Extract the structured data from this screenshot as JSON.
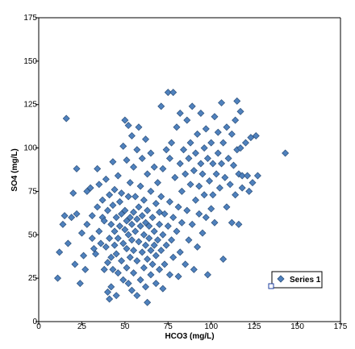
{
  "colors": {
    "marker_fill": "#4f81bd",
    "marker_stroke": "#2b4f7a",
    "axis": "#000000",
    "background": "#ffffff",
    "selection_handle": "#1f3f9f"
  },
  "chart_data": {
    "type": "scatter",
    "xlabel": "HCO3 (mg/L)",
    "ylabel": "SO4 (mg/L)",
    "xlim": [
      0,
      175
    ],
    "ylim": [
      0,
      175
    ],
    "x_ticks": [
      "0",
      "25",
      "50",
      "75",
      "100",
      "125",
      "150",
      "175"
    ],
    "y_ticks": [
      "0",
      "25",
      "50",
      "75",
      "100",
      "125",
      "150",
      "175"
    ],
    "x_tick_values": [
      0,
      25,
      50,
      75,
      100,
      125,
      150,
      175
    ],
    "y_tick_values": [
      0,
      25,
      50,
      75,
      100,
      125,
      150,
      175
    ],
    "grid": false,
    "legend": {
      "entries": [
        "Series 1"
      ],
      "position": "right"
    },
    "series": [
      {
        "name": "Series 1",
        "marker": "diamond",
        "points": [
          [
            16,
            117
          ],
          [
            11,
            25
          ],
          [
            12,
            40
          ],
          [
            14,
            56
          ],
          [
            15,
            61
          ],
          [
            17,
            45
          ],
          [
            19,
            60
          ],
          [
            20,
            74
          ],
          [
            21,
            33
          ],
          [
            22,
            62
          ],
          [
            22,
            88
          ],
          [
            24,
            22
          ],
          [
            25,
            51
          ],
          [
            26,
            38
          ],
          [
            27,
            30
          ],
          [
            28,
            75
          ],
          [
            28,
            56
          ],
          [
            30,
            77
          ],
          [
            31,
            48
          ],
          [
            31,
            61
          ],
          [
            32,
            42
          ],
          [
            33,
            39
          ],
          [
            34,
            66
          ],
          [
            34,
            88
          ],
          [
            35,
            52
          ],
          [
            35,
            79
          ],
          [
            36,
            45
          ],
          [
            37,
            60
          ],
          [
            37,
            70
          ],
          [
            38,
            30
          ],
          [
            38,
            58
          ],
          [
            39,
            43
          ],
          [
            39,
            82
          ],
          [
            40,
            17
          ],
          [
            40,
            34
          ],
          [
            40,
            64
          ],
          [
            41,
            13
          ],
          [
            41,
            48
          ],
          [
            41,
            73
          ],
          [
            42,
            20
          ],
          [
            42,
            37
          ],
          [
            42,
            56
          ],
          [
            43,
            30
          ],
          [
            43,
            67
          ],
          [
            43,
            92
          ],
          [
            44,
            44
          ],
          [
            44,
            52
          ],
          [
            44,
            76
          ],
          [
            45,
            15
          ],
          [
            45,
            39
          ],
          [
            45,
            60
          ],
          [
            46,
            28
          ],
          [
            46,
            48
          ],
          [
            46,
            84
          ],
          [
            47,
            55
          ],
          [
            47,
            69
          ],
          [
            48,
            35
          ],
          [
            48,
            62
          ],
          [
            48,
            74
          ],
          [
            49,
            24
          ],
          [
            49,
            45
          ],
          [
            49,
            101
          ],
          [
            50,
            53
          ],
          [
            50,
            64
          ],
          [
            50,
            116
          ],
          [
            51,
            31
          ],
          [
            51,
            42
          ],
          [
            51,
            58
          ],
          [
            51,
            93
          ],
          [
            52,
            22
          ],
          [
            52,
            50
          ],
          [
            52,
            72
          ],
          [
            52,
            113
          ],
          [
            53,
            37
          ],
          [
            53,
            60
          ],
          [
            53,
            80
          ],
          [
            54,
            18
          ],
          [
            54,
            47
          ],
          [
            54,
            56
          ],
          [
            54,
            107
          ],
          [
            55,
            28
          ],
          [
            55,
            41
          ],
          [
            55,
            63
          ],
          [
            55,
            89
          ],
          [
            56,
            52
          ],
          [
            56,
            72
          ],
          [
            57,
            15
          ],
          [
            57,
            35
          ],
          [
            57,
            59
          ],
          [
            57,
            99
          ],
          [
            58,
            46
          ],
          [
            58,
            66
          ],
          [
            58,
            112
          ],
          [
            59,
            24
          ],
          [
            59,
            55
          ],
          [
            59,
            78
          ],
          [
            60,
            40
          ],
          [
            60,
            61
          ],
          [
            60,
            94
          ],
          [
            61,
            31
          ],
          [
            61,
            50
          ],
          [
            61,
            70
          ],
          [
            62,
            20
          ],
          [
            62,
            44
          ],
          [
            62,
            57
          ],
          [
            62,
            105
          ],
          [
            63,
            11
          ],
          [
            63,
            36
          ],
          [
            63,
            64
          ],
          [
            63,
            85
          ],
          [
            64,
            48
          ],
          [
            64,
            55
          ],
          [
            65,
            27
          ],
          [
            65,
            41
          ],
          [
            65,
            75
          ],
          [
            65,
            97
          ],
          [
            66,
            33
          ],
          [
            66,
            60
          ],
          [
            67,
            44
          ],
          [
            67,
            52
          ],
          [
            67,
            89
          ],
          [
            68,
            22
          ],
          [
            68,
            38
          ],
          [
            68,
            68
          ],
          [
            69,
            47
          ],
          [
            69,
            80
          ],
          [
            70,
            30
          ],
          [
            70,
            56
          ],
          [
            70,
            63
          ],
          [
            71,
            41
          ],
          [
            71,
            72
          ],
          [
            71,
            124
          ],
          [
            72,
            19
          ],
          [
            72,
            50
          ],
          [
            72,
            88
          ],
          [
            73,
            33
          ],
          [
            73,
            62
          ],
          [
            74,
            44
          ],
          [
            74,
            99
          ],
          [
            75,
            132
          ],
          [
            75,
            55
          ],
          [
            76,
            27
          ],
          [
            76,
            69
          ],
          [
            76,
            94
          ],
          [
            77,
            47
          ],
          [
            77,
            103
          ],
          [
            78,
            132
          ],
          [
            78,
            37
          ],
          [
            78,
            60
          ],
          [
            79,
            83
          ],
          [
            80,
            52
          ],
          [
            80,
            112
          ],
          [
            81,
            26
          ],
          [
            81,
            66
          ],
          [
            82,
            40
          ],
          [
            82,
            91
          ],
          [
            82,
            120
          ],
          [
            83,
            57
          ],
          [
            83,
            75
          ],
          [
            84,
            99
          ],
          [
            85,
            33
          ],
          [
            85,
            85
          ],
          [
            86,
            64
          ],
          [
            86,
            116
          ],
          [
            87,
            47
          ],
          [
            87,
            94
          ],
          [
            88,
            79
          ],
          [
            88,
            103
          ],
          [
            89,
            56
          ],
          [
            89,
            124
          ],
          [
            90,
            30
          ],
          [
            90,
            87
          ],
          [
            91,
            70
          ],
          [
            91,
            97
          ],
          [
            92,
            43
          ],
          [
            92,
            108
          ],
          [
            93,
            78
          ],
          [
            93,
            62
          ],
          [
            94,
            120
          ],
          [
            94,
            91
          ],
          [
            95,
            51
          ],
          [
            95,
            85
          ],
          [
            96,
            100
          ],
          [
            96,
            73
          ],
          [
            97,
            111
          ],
          [
            97,
            60
          ],
          [
            98,
            27
          ],
          [
            98,
            94
          ],
          [
            99,
            81
          ],
          [
            100,
            65
          ],
          [
            100,
            103
          ],
          [
            101,
            91
          ],
          [
            101,
            73
          ],
          [
            102,
            118
          ],
          [
            102,
            57
          ],
          [
            103,
            85
          ],
          [
            104,
            97
          ],
          [
            104,
            109
          ],
          [
            105,
            77
          ],
          [
            106,
            91
          ],
          [
            106,
            126
          ],
          [
            107,
            36
          ],
          [
            107,
            103
          ],
          [
            108,
            83
          ],
          [
            109,
            66
          ],
          [
            109,
            112
          ],
          [
            110,
            94
          ],
          [
            111,
            79
          ],
          [
            112,
            57
          ],
          [
            112,
            108
          ],
          [
            113,
            90
          ],
          [
            114,
            116
          ],
          [
            114,
            73
          ],
          [
            115,
            99
          ],
          [
            115,
            127
          ],
          [
            116,
            56
          ],
          [
            116,
            85
          ],
          [
            117,
            100
          ],
          [
            117,
            121
          ],
          [
            118,
            77
          ],
          [
            118,
            84
          ],
          [
            120,
            103
          ],
          [
            121,
            84
          ],
          [
            122,
            75
          ],
          [
            123,
            106
          ],
          [
            124,
            80
          ],
          [
            126,
            107
          ],
          [
            127,
            84
          ],
          [
            143,
            97
          ]
        ]
      }
    ]
  }
}
